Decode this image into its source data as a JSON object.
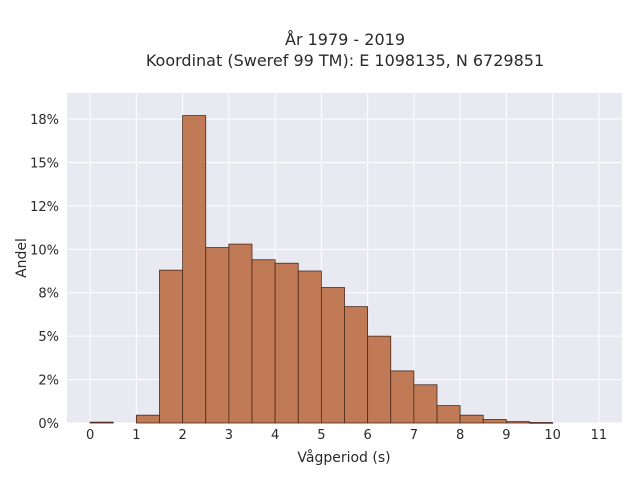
{
  "chart_data": {
    "type": "bar",
    "title_line1": "År 1979 - 2019",
    "title_line2": "Koordinat (Sweref 99 TM): E 1098135, N 6729851",
    "xlabel": "Vågperiod (s)",
    "ylabel": "Andel",
    "bin_width": 0.5,
    "bins": [
      {
        "x0": 0.0,
        "value": 0.05
      },
      {
        "x0": 0.5,
        "value": 0.0
      },
      {
        "x0": 1.0,
        "value": 0.45
      },
      {
        "x0": 1.5,
        "value": 8.8
      },
      {
        "x0": 2.0,
        "value": 17.7
      },
      {
        "x0": 2.5,
        "value": 10.1
      },
      {
        "x0": 3.0,
        "value": 10.3
      },
      {
        "x0": 3.5,
        "value": 9.4
      },
      {
        "x0": 4.0,
        "value": 9.2
      },
      {
        "x0": 4.5,
        "value": 8.75
      },
      {
        "x0": 5.0,
        "value": 7.8
      },
      {
        "x0": 5.5,
        "value": 6.7
      },
      {
        "x0": 6.0,
        "value": 5.0
      },
      {
        "x0": 6.5,
        "value": 3.0
      },
      {
        "x0": 7.0,
        "value": 2.2
      },
      {
        "x0": 7.5,
        "value": 1.0
      },
      {
        "x0": 8.0,
        "value": 0.45
      },
      {
        "x0": 8.5,
        "value": 0.2
      },
      {
        "x0": 9.0,
        "value": 0.08
      },
      {
        "x0": 9.5,
        "value": 0.03
      },
      {
        "x0": 10.0,
        "value": 0.0
      }
    ],
    "xlim": [
      -0.5,
      11.5
    ],
    "ylim": [
      0,
      19
    ],
    "x_ticks": [
      {
        "value": 0,
        "label": "0"
      },
      {
        "value": 1,
        "label": "1"
      },
      {
        "value": 2,
        "label": "2"
      },
      {
        "value": 3,
        "label": "3"
      },
      {
        "value": 4,
        "label": "4"
      },
      {
        "value": 5,
        "label": "5"
      },
      {
        "value": 6,
        "label": "6"
      },
      {
        "value": 7,
        "label": "7"
      },
      {
        "value": 8,
        "label": "8"
      },
      {
        "value": 9,
        "label": "9"
      },
      {
        "value": 10,
        "label": "10"
      },
      {
        "value": 11,
        "label": "11"
      }
    ],
    "y_ticks": [
      {
        "value": 0,
        "label": "0%"
      },
      {
        "value": 2.5,
        "label": "2%"
      },
      {
        "value": 5,
        "label": "5%"
      },
      {
        "value": 7.5,
        "label": "8%"
      },
      {
        "value": 10,
        "label": "10%"
      },
      {
        "value": 12.5,
        "label": "12%"
      },
      {
        "value": 15,
        "label": "15%"
      },
      {
        "value": 17.5,
        "label": "18%"
      }
    ],
    "grid": true,
    "colors": {
      "bar_fill": "#c07a55",
      "bar_stroke": "#4a2a1c",
      "plot_background": "#e9e9f1",
      "grid": "#ffffff"
    }
  }
}
